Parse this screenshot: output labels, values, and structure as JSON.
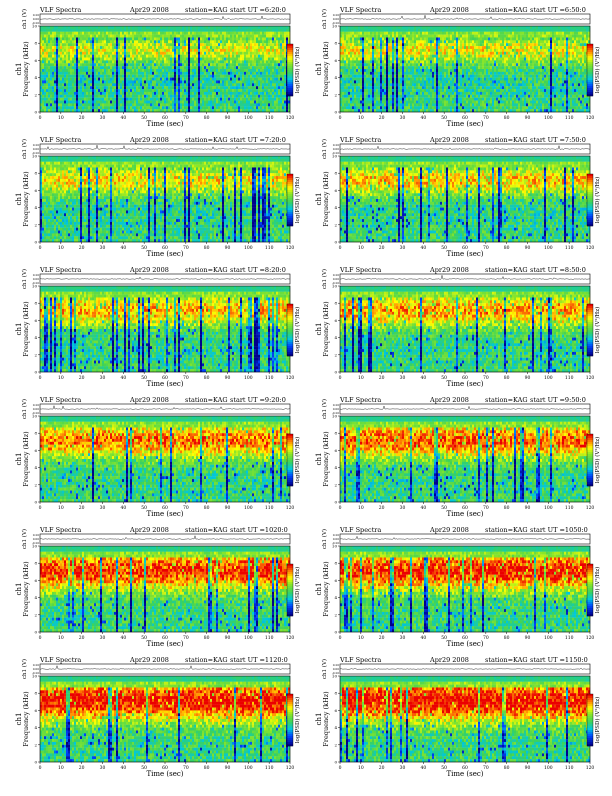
{
  "figure": {
    "title_prefix": "VLF Spectra",
    "date": "Apr29 2008",
    "station": "station=KAG",
    "x_label": "Time (sec)",
    "y_label_spec": "Frequency (kHz)",
    "y_label_ch": "ch1",
    "y_label_amp": "ch1 (V)",
    "colorbar_label": "log(PSD) (V²/Hz)",
    "x_ticks": [
      "0",
      "10",
      "20",
      "30",
      "40",
      "50",
      "60",
      "70",
      "80",
      "90",
      "100",
      "110",
      "120"
    ],
    "amp_ticks": [
      "0.20",
      "0.00",
      "-0.20"
    ],
    "freq_ticks": [
      "0",
      "2",
      "4",
      "6",
      "8",
      "10"
    ],
    "colors": {
      "low": "#00008b",
      "mid": "#00c8c8",
      "green": "#32cd32",
      "yellow": "#ffff00",
      "high": "#ff0000"
    }
  },
  "chart_data": {
    "type": "heatmap",
    "x_range": [
      0,
      120
    ],
    "freq_range_khz": [
      0,
      10
    ],
    "amp_range_v": [
      -0.2,
      0.2
    ],
    "panels": [
      {
        "start": "start UT =6:20:0",
        "intensity": 0.25
      },
      {
        "start": "start UT =6:50:0",
        "intensity": 0.3
      },
      {
        "start": "start UT =7:20:0",
        "intensity": 0.35
      },
      {
        "start": "start UT =7:50:0",
        "intensity": 0.4
      },
      {
        "start": "start UT =8:20:0",
        "intensity": 0.45
      },
      {
        "start": "start UT =8:50:0",
        "intensity": 0.5
      },
      {
        "start": "start UT =9:20:0",
        "intensity": 0.58
      },
      {
        "start": "start UT =9:50:0",
        "intensity": 0.62
      },
      {
        "start": "start UT =1020:0",
        "intensity": 0.72
      },
      {
        "start": "start UT =1050:0",
        "intensity": 0.75
      },
      {
        "start": "start UT =1120:0",
        "intensity": 0.8
      },
      {
        "start": "start UT =1150:0",
        "intensity": 0.82
      }
    ]
  }
}
